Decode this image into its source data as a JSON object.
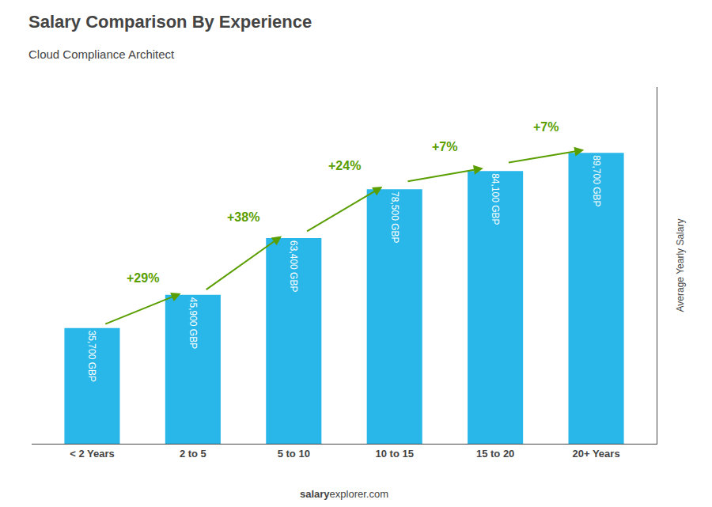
{
  "chart_data": {
    "type": "bar",
    "title": "Salary Comparison By Experience",
    "subtitle": "Cloud Compliance Architect",
    "categories": [
      "< 2 Years",
      "2 to 5",
      "5 to 10",
      "10 to 15",
      "15 to 20",
      "20+ Years"
    ],
    "values": [
      35700,
      45900,
      63400,
      78500,
      84100,
      89700
    ],
    "value_labels": [
      "35,700 GBP",
      "45,900 GBP",
      "63,400 GBP",
      "78,500 GBP",
      "84,100 GBP",
      "89,700 GBP"
    ],
    "data_labels": true,
    "color": "#29b6e8",
    "ylabel": "Average Yearly Salary",
    "ylim": [
      0,
      110000
    ],
    "yticks": [],
    "tick_labels": "x",
    "grid": false,
    "annotations": [
      "+29%",
      "+38%",
      "+24%",
      "+7%",
      "+7%"
    ],
    "footer": [
      "salary",
      "explorer.com"
    ]
  }
}
